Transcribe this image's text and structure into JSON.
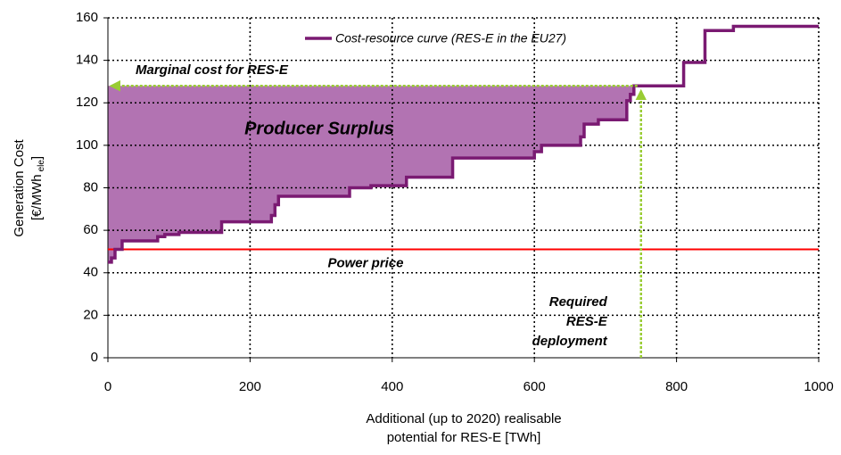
{
  "chart_data": {
    "type": "line",
    "x_label": [
      "Additional (up to 2020) realisable",
      "potential for RES-E [TWh]"
    ],
    "y_label": {
      "line1": "Generation Cost",
      "line2": "[€/MWh",
      "subscript": "ele",
      "close": "]"
    },
    "x": [
      0,
      5,
      5,
      10,
      10,
      20,
      20,
      70,
      70,
      80,
      80,
      100,
      100,
      160,
      160,
      230,
      230,
      235,
      235,
      240,
      240,
      340,
      340,
      370,
      370,
      420,
      420,
      485,
      485,
      600,
      600,
      610,
      610,
      665,
      665,
      670,
      670,
      690,
      690,
      730,
      730,
      735,
      735,
      740,
      740,
      810,
      810,
      840,
      840,
      880,
      880,
      1000
    ],
    "series": [
      {
        "name": "Cost-resource curve (RES-E in the EU27)",
        "color": "#7a1a72",
        "values": [
          45,
          45,
          47,
          47,
          51,
          51,
          55,
          55,
          57,
          57,
          58,
          58,
          59,
          59,
          64,
          64,
          67,
          67,
          72,
          72,
          76,
          76,
          80,
          80,
          81,
          81,
          85,
          85,
          94,
          94,
          97,
          97,
          100,
          100,
          104,
          104,
          110,
          110,
          112,
          112,
          121,
          121,
          124,
          124,
          128,
          128,
          139,
          139,
          154,
          154,
          156,
          156
        ]
      }
    ],
    "xlim": [
      0,
      1000
    ],
    "xticks": [
      0,
      200,
      400,
      600,
      800,
      1000
    ],
    "ylim": [
      0,
      160
    ],
    "yticks": [
      0,
      20,
      40,
      60,
      80,
      100,
      120,
      140,
      160
    ],
    "grid": true,
    "power_price": {
      "label": "Power price",
      "value": 51,
      "color": "#ff0000"
    },
    "marginal_cost": {
      "label": "Marginal cost for RES-E",
      "value": 128,
      "color": "#99cc33"
    },
    "required_deployment": {
      "label": [
        "Required",
        "RES-E",
        "deployment"
      ],
      "value": 750,
      "color": "#99cc33"
    },
    "surplus": {
      "label": "Producer Surplus",
      "color": "#a55aa5"
    }
  }
}
